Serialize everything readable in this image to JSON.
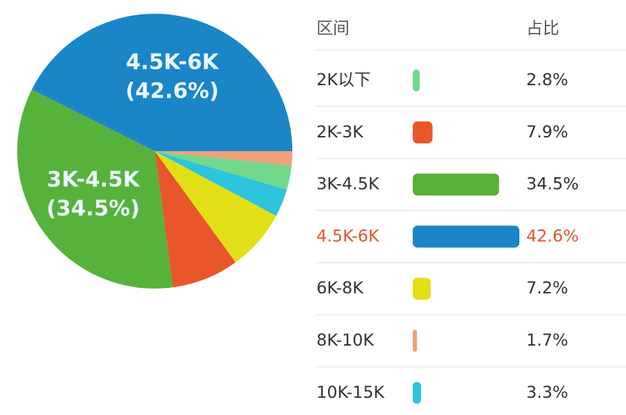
{
  "chart_data": {
    "type": "pie",
    "headers": [
      "区间",
      "占比"
    ],
    "categories": [
      "2K以下",
      "2K-3K",
      "3K-4.5K",
      "4.5K-6K",
      "6K-8K",
      "8K-10K",
      "10K-15K"
    ],
    "values": [
      2.8,
      7.9,
      34.5,
      42.6,
      7.2,
      1.7,
      3.3
    ],
    "value_labels": [
      "2.8%",
      "7.9%",
      "34.5%",
      "42.6%",
      "7.2%",
      "1.7%",
      "3.3%"
    ],
    "colors": [
      "#72d88c",
      "#e9562a",
      "#57b23b",
      "#1a86c8",
      "#e3df17",
      "#f0a07a",
      "#2cc5dc"
    ],
    "pie_labels": [
      null,
      null,
      "(34.5%)",
      "(42.6%)",
      null,
      null,
      null
    ],
    "pie_order": [
      3,
      2,
      1,
      4,
      6,
      0,
      5
    ],
    "highlight": 3,
    "highlight_color": "#e0572e"
  }
}
